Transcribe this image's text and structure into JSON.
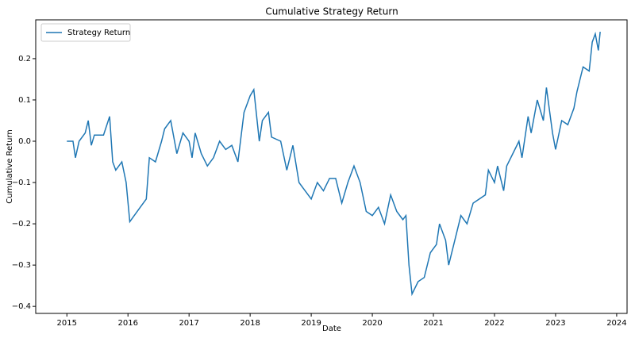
{
  "chart_data": {
    "type": "line",
    "title": "Cumulative Strategy Return",
    "xlabel": "Date",
    "ylabel": "Cumulative Return",
    "legend": "upper left",
    "xlim": [
      2014.49,
      2024.17
    ],
    "xticks": [
      2015,
      2016,
      2017,
      2018,
      2019,
      2020,
      2021,
      2022,
      2023,
      2024
    ],
    "ylim": [
      -0.417,
      0.294
    ],
    "yticks": [
      {
        "value": -0.4,
        "label": "−0.4"
      },
      {
        "value": -0.3,
        "label": "−0.3"
      },
      {
        "value": -0.2,
        "label": "−0.2"
      },
      {
        "value": -0.1,
        "label": "−0.1"
      },
      {
        "value": 0,
        "label": "0.0"
      },
      0.1,
      0.2
    ],
    "x": [
      2015.0,
      2015.1,
      2015.14,
      2015.2,
      2015.3,
      2015.35,
      2015.4,
      2015.45,
      2015.6,
      2015.7,
      2015.75,
      2015.8,
      2015.9,
      2015.97,
      2016.03,
      2016.2,
      2016.3,
      2016.35,
      2016.45,
      2016.55,
      2016.6,
      2016.7,
      2016.8,
      2016.9,
      2017.0,
      2017.05,
      2017.1,
      2017.2,
      2017.3,
      2017.4,
      2017.5,
      2017.6,
      2017.7,
      2017.8,
      2017.9,
      2018.0,
      2018.06,
      2018.15,
      2018.2,
      2018.3,
      2018.35,
      2018.5,
      2018.6,
      2018.7,
      2018.8,
      2018.9,
      2019.0,
      2019.1,
      2019.2,
      2019.3,
      2019.4,
      2019.5,
      2019.6,
      2019.7,
      2019.8,
      2019.9,
      2020.0,
      2020.1,
      2020.2,
      2020.3,
      2020.4,
      2020.5,
      2020.55,
      2020.6,
      2020.65,
      2020.75,
      2020.85,
      2020.95,
      2021.05,
      2021.1,
      2021.2,
      2021.25,
      2021.35,
      2021.45,
      2021.55,
      2021.65,
      2021.75,
      2021.85,
      2021.9,
      2022.0,
      2022.05,
      2022.15,
      2022.2,
      2022.3,
      2022.4,
      2022.45,
      2022.55,
      2022.6,
      2022.7,
      2022.8,
      2022.85,
      2022.95,
      2023.0,
      2023.1,
      2023.2,
      2023.3,
      2023.35,
      2023.45,
      2023.55,
      2023.6,
      2023.65,
      2023.7,
      2023.73
    ],
    "series": [
      {
        "name": "Strategy Return",
        "color": "#1f77b4",
        "values": [
          0.0,
          0.0,
          -0.04,
          0.0,
          0.02,
          0.05,
          -0.01,
          0.015,
          0.015,
          0.06,
          -0.05,
          -0.07,
          -0.05,
          -0.1,
          -0.195,
          -0.16,
          -0.14,
          -0.04,
          -0.05,
          0.0,
          0.03,
          0.05,
          -0.03,
          0.02,
          0.0,
          -0.04,
          0.02,
          -0.03,
          -0.06,
          -0.04,
          0.0,
          -0.02,
          -0.01,
          -0.05,
          0.07,
          0.11,
          0.125,
          0.0,
          0.05,
          0.07,
          0.01,
          0.0,
          -0.07,
          -0.01,
          -0.1,
          -0.12,
          -0.14,
          -0.1,
          -0.12,
          -0.09,
          -0.09,
          -0.15,
          -0.1,
          -0.06,
          -0.1,
          -0.17,
          -0.18,
          -0.16,
          -0.2,
          -0.13,
          -0.17,
          -0.19,
          -0.18,
          -0.3,
          -0.37,
          -0.34,
          -0.33,
          -0.27,
          -0.25,
          -0.2,
          -0.24,
          -0.3,
          -0.24,
          -0.18,
          -0.2,
          -0.15,
          -0.14,
          -0.13,
          -0.07,
          -0.1,
          -0.06,
          -0.12,
          -0.06,
          -0.03,
          0.0,
          -0.04,
          0.06,
          0.02,
          0.1,
          0.05,
          0.13,
          0.02,
          -0.02,
          0.05,
          0.04,
          0.08,
          0.12,
          0.18,
          0.17,
          0.24,
          0.26,
          0.22,
          0.265
        ]
      }
    ]
  }
}
